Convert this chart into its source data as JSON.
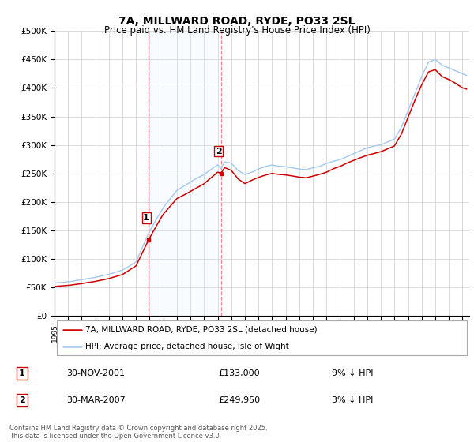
{
  "title": "7A, MILLWARD ROAD, RYDE, PO33 2SL",
  "subtitle": "Price paid vs. HM Land Registry's House Price Index (HPI)",
  "ylabel_ticks": [
    "£0",
    "£50K",
    "£100K",
    "£150K",
    "£200K",
    "£250K",
    "£300K",
    "£350K",
    "£400K",
    "£450K",
    "£500K"
  ],
  "ytick_values": [
    0,
    50000,
    100000,
    150000,
    200000,
    250000,
    300000,
    350000,
    400000,
    450000,
    500000
  ],
  "ylim": [
    0,
    500000
  ],
  "xlim_start": 1995.0,
  "xlim_end": 2025.5,
  "hpi_color": "#aaccee",
  "price_color": "#cc0000",
  "sale1_date": 2001.917,
  "sale1_price": 133000,
  "sale2_date": 2007.25,
  "sale2_price": 249950,
  "vline_color": "#ee8888",
  "shade_color": "#ddeeff",
  "legend_label1": "7A, MILLWARD ROAD, RYDE, PO33 2SL (detached house)",
  "legend_label2": "HPI: Average price, detached house, Isle of Wight",
  "table_row1": [
    "1",
    "30-NOV-2001",
    "£133,000",
    "9% ↓ HPI"
  ],
  "table_row2": [
    "2",
    "30-MAR-2007",
    "£249,950",
    "3% ↓ HPI"
  ],
  "footnote": "Contains HM Land Registry data © Crown copyright and database right 2025.\nThis data is licensed under the Open Government Licence v3.0.",
  "background_color": "#ffffff",
  "grid_color": "#cccccc",
  "hpi_points": [
    [
      1995.0,
      58000
    ],
    [
      1996.0,
      60000
    ],
    [
      1997.0,
      64000
    ],
    [
      1998.0,
      68000
    ],
    [
      1999.0,
      73000
    ],
    [
      2000.0,
      80000
    ],
    [
      2001.0,
      95000
    ],
    [
      2001.917,
      145000
    ],
    [
      2002.5,
      170000
    ],
    [
      2003.0,
      190000
    ],
    [
      2004.0,
      220000
    ],
    [
      2005.0,
      235000
    ],
    [
      2006.0,
      248000
    ],
    [
      2007.0,
      265000
    ],
    [
      2007.25,
      258000
    ],
    [
      2007.5,
      270000
    ],
    [
      2008.0,
      268000
    ],
    [
      2008.5,
      255000
    ],
    [
      2009.0,
      248000
    ],
    [
      2009.5,
      252000
    ],
    [
      2010.0,
      258000
    ],
    [
      2010.5,
      262000
    ],
    [
      2011.0,
      265000
    ],
    [
      2011.5,
      263000
    ],
    [
      2012.0,
      262000
    ],
    [
      2012.5,
      260000
    ],
    [
      2013.0,
      258000
    ],
    [
      2013.5,
      257000
    ],
    [
      2014.0,
      260000
    ],
    [
      2014.5,
      263000
    ],
    [
      2015.0,
      268000
    ],
    [
      2015.5,
      272000
    ],
    [
      2016.0,
      275000
    ],
    [
      2016.5,
      280000
    ],
    [
      2017.0,
      285000
    ],
    [
      2017.5,
      290000
    ],
    [
      2018.0,
      295000
    ],
    [
      2018.5,
      298000
    ],
    [
      2019.0,
      300000
    ],
    [
      2019.5,
      305000
    ],
    [
      2020.0,
      310000
    ],
    [
      2020.5,
      330000
    ],
    [
      2021.0,
      360000
    ],
    [
      2021.5,
      390000
    ],
    [
      2022.0,
      420000
    ],
    [
      2022.5,
      445000
    ],
    [
      2023.0,
      450000
    ],
    [
      2023.5,
      440000
    ],
    [
      2024.0,
      435000
    ],
    [
      2024.5,
      430000
    ],
    [
      2025.0,
      425000
    ],
    [
      2025.3,
      422000
    ]
  ],
  "price_points": [
    [
      1995.0,
      52000
    ],
    [
      1996.0,
      54000
    ],
    [
      1997.0,
      57000
    ],
    [
      1998.0,
      61000
    ],
    [
      1999.0,
      66000
    ],
    [
      2000.0,
      73000
    ],
    [
      2001.0,
      88000
    ],
    [
      2001.917,
      133000
    ],
    [
      2002.5,
      158000
    ],
    [
      2003.0,
      178000
    ],
    [
      2004.0,
      205000
    ],
    [
      2005.0,
      218000
    ],
    [
      2006.0,
      232000
    ],
    [
      2006.5,
      242000
    ],
    [
      2007.0,
      252000
    ],
    [
      2007.25,
      249950
    ],
    [
      2007.5,
      260000
    ],
    [
      2008.0,
      255000
    ],
    [
      2008.5,
      240000
    ],
    [
      2009.0,
      232000
    ],
    [
      2009.5,
      238000
    ],
    [
      2010.0,
      243000
    ],
    [
      2010.5,
      247000
    ],
    [
      2011.0,
      250000
    ],
    [
      2011.5,
      248000
    ],
    [
      2012.0,
      247000
    ],
    [
      2012.5,
      245000
    ],
    [
      2013.0,
      243000
    ],
    [
      2013.5,
      242000
    ],
    [
      2014.0,
      245000
    ],
    [
      2014.5,
      248000
    ],
    [
      2015.0,
      252000
    ],
    [
      2015.5,
      258000
    ],
    [
      2016.0,
      262000
    ],
    [
      2016.5,
      268000
    ],
    [
      2017.0,
      273000
    ],
    [
      2017.5,
      278000
    ],
    [
      2018.0,
      282000
    ],
    [
      2018.5,
      285000
    ],
    [
      2019.0,
      288000
    ],
    [
      2019.5,
      293000
    ],
    [
      2020.0,
      298000
    ],
    [
      2020.5,
      318000
    ],
    [
      2021.0,
      348000
    ],
    [
      2021.5,
      378000
    ],
    [
      2022.0,
      405000
    ],
    [
      2022.5,
      428000
    ],
    [
      2023.0,
      432000
    ],
    [
      2023.5,
      420000
    ],
    [
      2024.0,
      415000
    ],
    [
      2024.5,
      408000
    ],
    [
      2025.0,
      400000
    ],
    [
      2025.3,
      398000
    ]
  ]
}
